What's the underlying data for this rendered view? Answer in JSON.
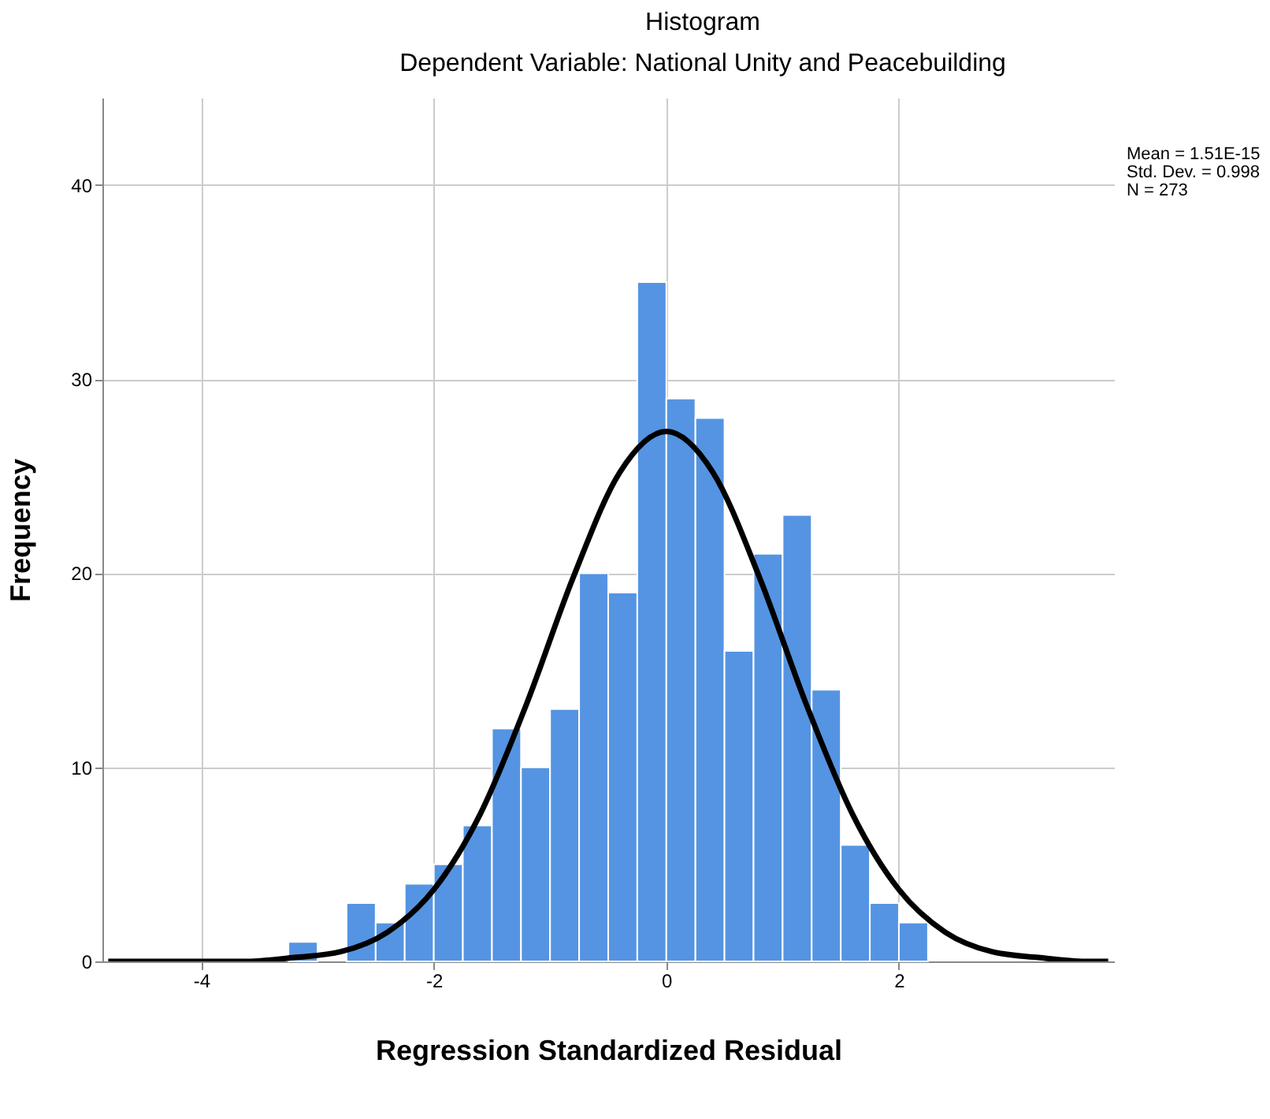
{
  "chart_data": {
    "type": "histogram",
    "title": "Histogram",
    "subtitle": "Dependent Variable: National Unity and Peacebuilding",
    "xlabel": "Regression Standardized Residual",
    "ylabel": "Frequency",
    "bins": [
      -3.25,
      -3.0,
      -2.75,
      -2.5,
      -2.25,
      -2.0,
      -1.75,
      -1.5,
      -1.25,
      -1.0,
      -0.75,
      -0.5,
      -0.25,
      0,
      0.25,
      0.5,
      0.75,
      1.0,
      1.25,
      1.5,
      1.75,
      2.0,
      2.25
    ],
    "values": [
      1,
      0,
      3,
      2,
      4,
      5,
      7,
      12,
      10,
      13,
      20,
      19,
      35,
      29,
      28,
      16,
      21,
      23,
      14,
      6,
      3,
      2
    ],
    "color": "#5594e2",
    "series": [
      {
        "type": "line",
        "color": "#000000",
        "x": [
          -4.8,
          -4.4,
          -4.0,
          -3.6,
          -3.2,
          -2.8,
          -2.4,
          -2.0,
          -1.6,
          -1.2,
          -0.8,
          -0.4,
          0,
          0.4,
          0.8,
          1.2,
          1.6,
          2.0,
          2.4,
          2.8,
          3.2,
          3.6,
          3.8
        ],
        "values": [
          0,
          0,
          0,
          0,
          0.2,
          0.5,
          1.5,
          3.7,
          7.6,
          13.3,
          19.8,
          25.2,
          27.3,
          25.2,
          19.8,
          13.3,
          7.6,
          3.7,
          1.5,
          0.5,
          0.2,
          0,
          0
        ]
      }
    ],
    "xlim": [
      -4.85,
      3.85
    ],
    "xticks": [
      -4,
      -2,
      0,
      2
    ],
    "ylim": [
      0,
      44.5
    ],
    "yticks": [
      0,
      10,
      20,
      30,
      40
    ],
    "grid": true,
    "marker": "none",
    "line_style": "solid",
    "annotations": [
      "Mean = 1.51E-15",
      "Std. Dev. = 0.998",
      "N = 273"
    ]
  }
}
